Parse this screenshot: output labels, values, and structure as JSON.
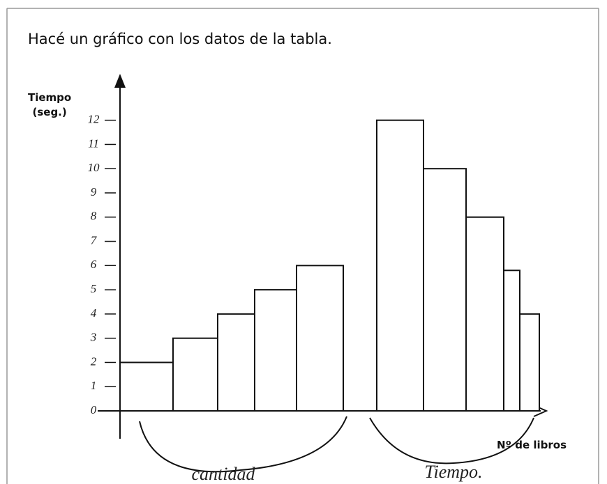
{
  "chart_data": {
    "type": "bar",
    "title": "Hacé un gráfico con los datos de la tabla.",
    "y_label": "Tiempo\n(seg.)",
    "x_label": "Nº de libros",
    "categories": [
      null,
      null,
      null,
      null,
      null,
      null,
      null,
      null,
      null,
      null
    ],
    "values": [
      2,
      3,
      4,
      5,
      6,
      12,
      10,
      8,
      5.8,
      4
    ],
    "color": "#ffffff",
    "ylim": [
      0,
      13.6
    ],
    "yticks": [
      0,
      1,
      2,
      3,
      4,
      5,
      6,
      7,
      8,
      9,
      10,
      11,
      12
    ],
    "annotations": [
      "cantidad",
      "Tiempo."
    ]
  }
}
